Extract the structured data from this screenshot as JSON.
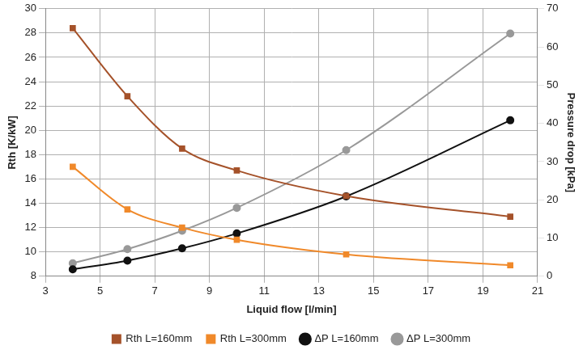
{
  "chart_data": {
    "type": "line",
    "x_label": "Liquid flow [l/min]",
    "y_label": "Rth [K/kW]",
    "y2_label": "Pressure drop [kPa]",
    "x": [
      4,
      6,
      8,
      10,
      14,
      20
    ],
    "series": [
      {
        "name": "Rth L=160mm",
        "color": "#a5522a",
        "marker": "square",
        "axis": "y",
        "values": [
          28.4,
          22.8,
          18.5,
          16.7,
          14.6,
          12.9
        ]
      },
      {
        "name": "Rth L=300mm",
        "color": "#f0892a",
        "marker": "square",
        "axis": "y",
        "values": [
          17.0,
          13.5,
          12.0,
          11.0,
          9.8,
          8.9
        ]
      },
      {
        "name": "ΔP L=160mm",
        "color": "#111111",
        "marker": "circle",
        "axis": "y2",
        "values": [
          1.8,
          4.1,
          7.3,
          11.2,
          20.9,
          40.8
        ]
      },
      {
        "name": "ΔP L=300mm",
        "color": "#999999",
        "marker": "circle",
        "axis": "y2",
        "values": [
          3.4,
          7.1,
          11.9,
          17.9,
          33.0,
          63.5
        ]
      }
    ],
    "xlim": [
      3,
      21
    ],
    "xticks": [
      3,
      5,
      7,
      9,
      11,
      13,
      15,
      17,
      19,
      21
    ],
    "ylim": [
      8,
      30
    ],
    "yticks": [
      8,
      10,
      12,
      14,
      16,
      18,
      20,
      22,
      24,
      26,
      28,
      30
    ],
    "y2lim": [
      0,
      70
    ],
    "y2ticks": [
      0,
      10,
      20,
      30,
      40,
      50,
      60,
      70
    ],
    "grid": true,
    "legend": "bottom"
  }
}
